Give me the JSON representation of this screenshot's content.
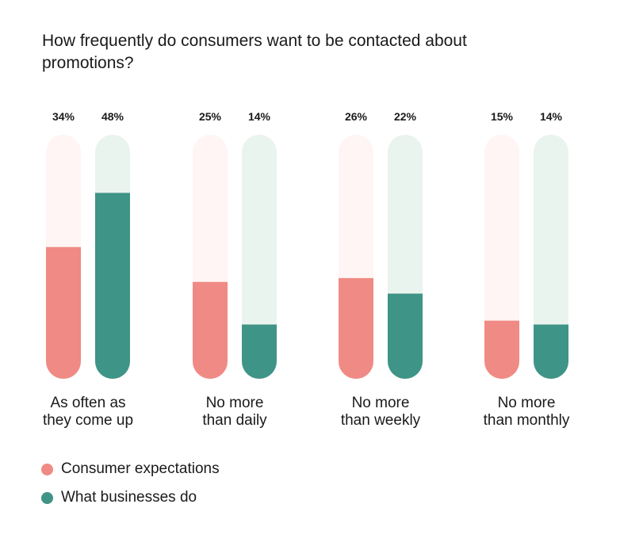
{
  "chart_data": {
    "type": "bar",
    "title": "How frequently do consumers want to be contacted about promotions?",
    "categories": [
      [
        "As often as",
        "they come up"
      ],
      [
        "No more",
        "than daily"
      ],
      [
        "No more",
        "than weekly"
      ],
      [
        "No more",
        "than monthly"
      ]
    ],
    "series": [
      {
        "name": "Consumer expectations",
        "values": [
          34,
          25,
          26,
          15
        ],
        "labels": [
          "34%",
          "25%",
          "26%",
          "15%"
        ],
        "color": "#F08A84",
        "track_color": "#FFF5F4"
      },
      {
        "name": "What businesses do",
        "values": [
          48,
          14,
          22,
          14
        ],
        "labels": [
          "48%",
          "14%",
          "22%",
          "14%"
        ],
        "color": "#3E9486",
        "track_color": "#EAF4EE"
      }
    ],
    "ylim": [
      0,
      63
    ],
    "xlabel": "",
    "ylabel": "",
    "legend": "bottom-left"
  }
}
